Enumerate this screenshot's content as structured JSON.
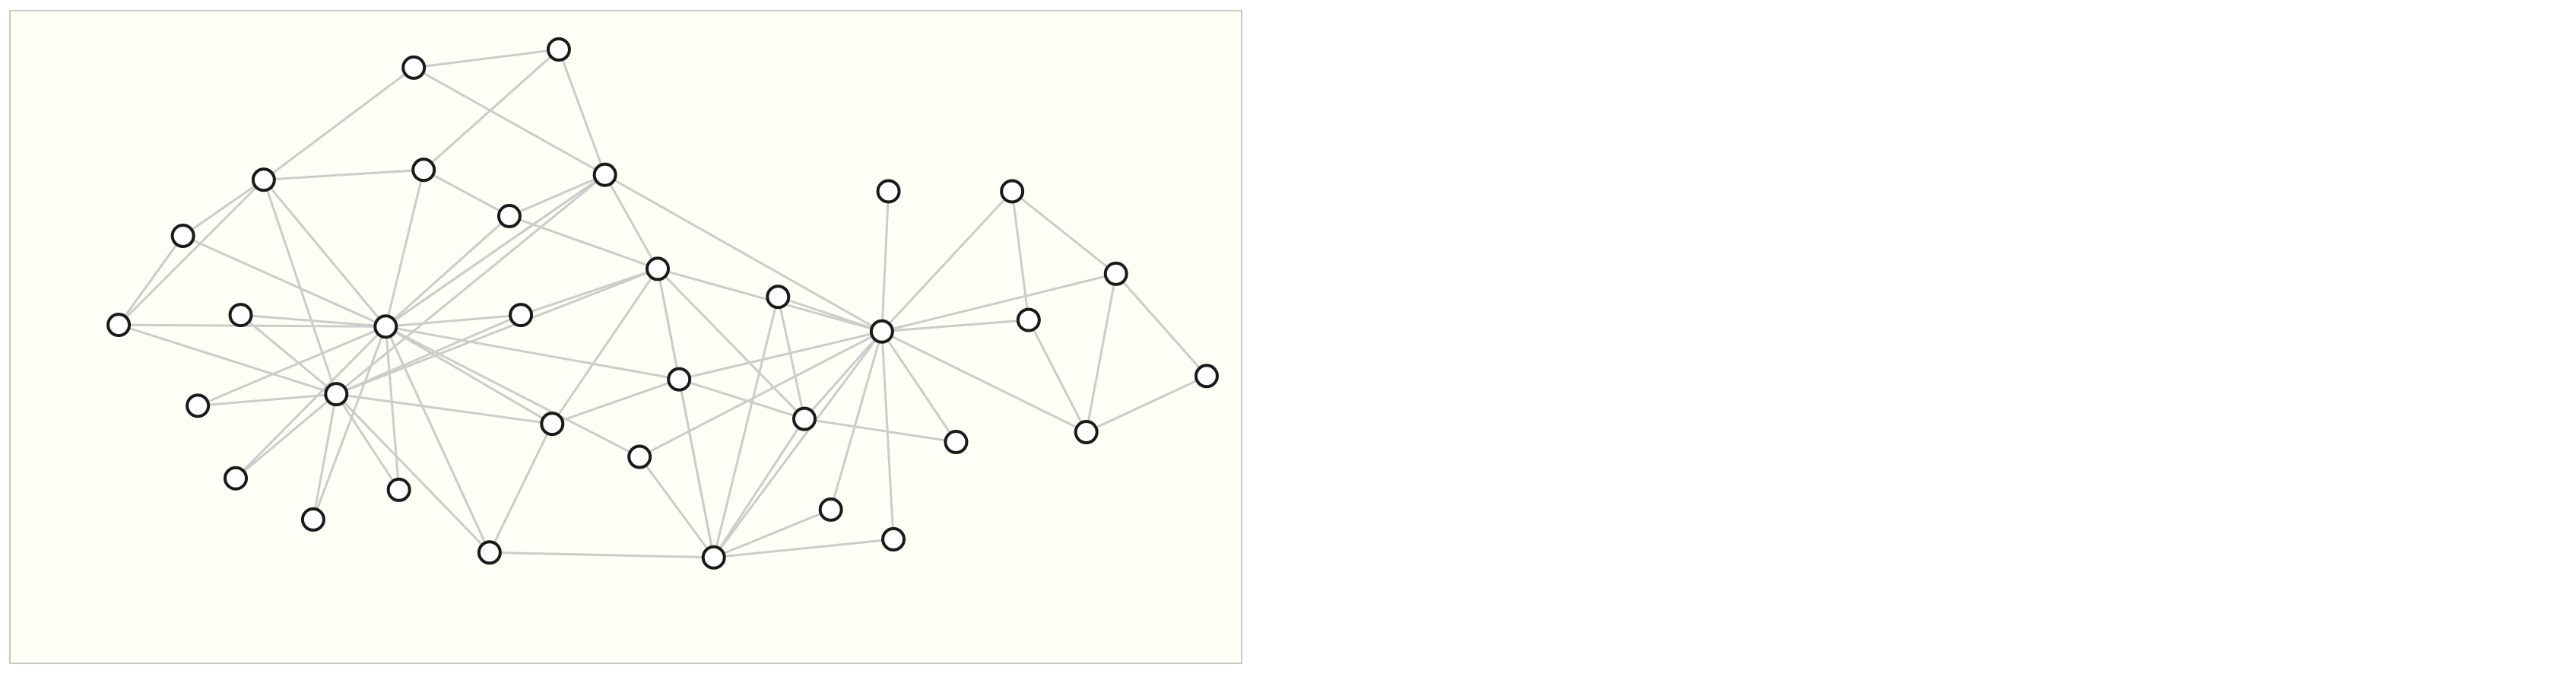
{
  "graph": {
    "type": "network",
    "node_count": 34,
    "colors": {
      "panel_background": "#fffff7",
      "panel_border": "#c8c8c8",
      "edge": "#cccccc",
      "node_fill": "#ffffff",
      "node_stroke": "#1a1a1a"
    },
    "nodes": [
      "n1",
      "n2",
      "n3",
      "n4",
      "n5",
      "n6",
      "n7",
      "n8",
      "n9",
      "n10",
      "n11",
      "n12",
      "n13",
      "n14",
      "n15",
      "n16",
      "n17",
      "n18",
      "n19",
      "n20",
      "n21",
      "n22",
      "n23",
      "n24",
      "n25",
      "n26",
      "n27",
      "n28",
      "n29",
      "n30",
      "n31",
      "n32",
      "n33",
      "n34"
    ],
    "edges": [
      [
        "n1",
        "n2"
      ],
      [
        "n1",
        "n3"
      ],
      [
        "n2",
        "n3"
      ],
      [
        "n2",
        "n6"
      ],
      [
        "n3",
        "n6"
      ],
      [
        "n3",
        "n16"
      ],
      [
        "n3",
        "n11"
      ],
      [
        "n3",
        "n17"
      ],
      [
        "n4",
        "n6"
      ],
      [
        "n4",
        "n7"
      ],
      [
        "n4",
        "n20"
      ],
      [
        "n4",
        "n21"
      ],
      [
        "n4",
        "n26"
      ],
      [
        "n4",
        "n11"
      ],
      [
        "n4",
        "n18"
      ],
      [
        "n5",
        "n6"
      ],
      [
        "n5",
        "n8"
      ],
      [
        "n5",
        "n20"
      ],
      [
        "n6",
        "n15"
      ],
      [
        "n6",
        "n16"
      ],
      [
        "n6",
        "n17"
      ],
      [
        "n6",
        "n20"
      ],
      [
        "n6",
        "n23"
      ],
      [
        "n6",
        "n24"
      ],
      [
        "n6",
        "n25"
      ],
      [
        "n6",
        "n29"
      ],
      [
        "n6",
        "n30"
      ],
      [
        "n6",
        "n19"
      ],
      [
        "n6",
        "n13"
      ],
      [
        "n6",
        "n26"
      ],
      [
        "n7",
        "n8"
      ],
      [
        "n7",
        "n17"
      ],
      [
        "n8",
        "n22"
      ],
      [
        "n9",
        "n20"
      ],
      [
        "n10",
        "n20"
      ],
      [
        "n11",
        "n26"
      ],
      [
        "n11",
        "n33"
      ],
      [
        "n12",
        "n13"
      ],
      [
        "n12",
        "n19"
      ],
      [
        "n12",
        "n17"
      ],
      [
        "n12",
        "n20"
      ],
      [
        "n13",
        "n26"
      ],
      [
        "n13",
        "n17"
      ],
      [
        "n13",
        "n21"
      ],
      [
        "n13",
        "n29"
      ],
      [
        "n13",
        "n23"
      ],
      [
        "n13",
        "n25"
      ],
      [
        "n14",
        "n17"
      ],
      [
        "n15",
        "n20"
      ],
      [
        "n16",
        "n17"
      ],
      [
        "n17",
        "n33"
      ],
      [
        "n17",
        "n21"
      ],
      [
        "n18",
        "n28"
      ],
      [
        "n18",
        "n34"
      ],
      [
        "n19",
        "n20"
      ],
      [
        "n19",
        "n30"
      ],
      [
        "n20",
        "n24"
      ],
      [
        "n20",
        "n25"
      ],
      [
        "n20",
        "n26"
      ],
      [
        "n20",
        "n29"
      ],
      [
        "n20",
        "n30"
      ],
      [
        "n21",
        "n26"
      ],
      [
        "n21",
        "n27"
      ],
      [
        "n21",
        "n34"
      ],
      [
        "n22",
        "n34"
      ],
      [
        "n23",
        "n28"
      ],
      [
        "n24",
        "n26"
      ],
      [
        "n26",
        "n27"
      ],
      [
        "n26",
        "n28"
      ],
      [
        "n26",
        "n33"
      ],
      [
        "n26",
        "n32"
      ],
      [
        "n26",
        "n31"
      ],
      [
        "n27",
        "n34"
      ],
      [
        "n28",
        "n34"
      ],
      [
        "n29",
        "n34"
      ],
      [
        "n30",
        "n34"
      ],
      [
        "n31",
        "n34"
      ],
      [
        "n32",
        "n34"
      ]
    ]
  }
}
